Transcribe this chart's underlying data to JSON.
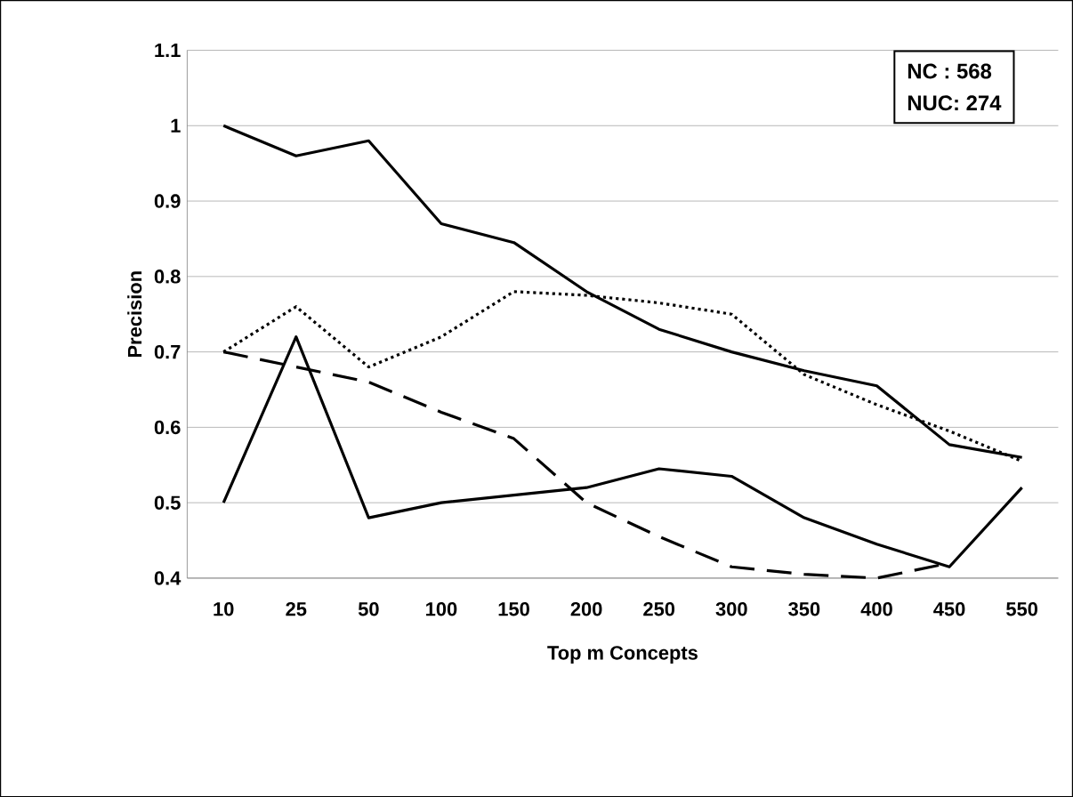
{
  "chart_data": {
    "type": "line",
    "xlabel": "Top m Concepts",
    "ylabel": "Precision",
    "categories": [
      "10",
      "25",
      "50",
      "100",
      "150",
      "200",
      "250",
      "300",
      "350",
      "400",
      "450",
      "550"
    ],
    "series": [
      {
        "color": "#000000",
        "line_style": "solid",
        "values": [
          1.0,
          0.96,
          0.98,
          0.87,
          0.845,
          0.78,
          0.73,
          0.7,
          0.675,
          0.655,
          0.577,
          0.56
        ]
      },
      {
        "color": "#000000",
        "line_style": "dotted",
        "values": [
          0.7,
          0.76,
          0.68,
          0.72,
          0.78,
          0.775,
          0.765,
          0.75,
          0.67,
          0.63,
          0.595,
          0.555
        ]
      },
      {
        "color": "#000000",
        "line_style": "dashed",
        "values": [
          0.7,
          0.68,
          0.66,
          0.62,
          0.585,
          0.5,
          0.455,
          0.415,
          0.405,
          0.4,
          0.42,
          null
        ]
      },
      {
        "color": "#000000",
        "line_style": "solid",
        "values": [
          0.5,
          0.72,
          0.48,
          0.5,
          0.51,
          0.52,
          0.545,
          0.535,
          0.48,
          0.445,
          0.415,
          0.52
        ]
      }
    ],
    "ylim": [
      0.4,
      1.1
    ],
    "yticks": [
      0.4,
      0.5,
      0.6,
      0.7,
      0.8,
      0.9,
      1,
      1.1
    ],
    "grid": "y",
    "marker": "none",
    "annotations": [
      "NC   : 568",
      "NUC: 274"
    ]
  }
}
